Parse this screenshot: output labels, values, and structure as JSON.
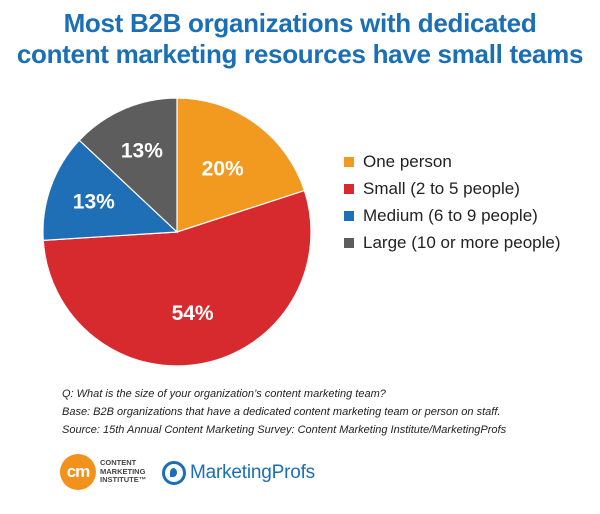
{
  "title": {
    "line1": "Most B2B organizations with dedicated",
    "line2": "content marketing resources have small teams"
  },
  "chart_data": {
    "type": "pie",
    "categories": [
      "One person",
      "Small (2 to 5 people)",
      "Medium (6 to 9 people)",
      "Large (10 or more people)"
    ],
    "values": [
      20,
      54,
      13,
      13
    ],
    "value_labels": [
      "20%",
      "54%",
      "13%",
      "13%"
    ],
    "colors": [
      "#f2991f",
      "#d62a2f",
      "#1f6fb7",
      "#5d5d5e"
    ],
    "start": "12 o'clock",
    "direction": "clockwise",
    "legend_position": "right"
  },
  "legend": [
    {
      "label": "One person",
      "color": "#f2991f"
    },
    {
      "label": "Small (2 to 5 people)",
      "color": "#d62a2f"
    },
    {
      "label": "Medium (6 to 9 people)",
      "color": "#1f6fb7"
    },
    {
      "label": "Large (10 or more people)",
      "color": "#5d5d5e"
    }
  ],
  "notes": {
    "question": "Q: What is the size of your organization’s content marketing team?",
    "base": "Base: B2B organizations that have a dedicated content marketing team or person on staff.",
    "source": "Source: 15th Annual Content Marketing Survey: Content Marketing Institute/MarketingProfs"
  },
  "logos": {
    "cmi_mark": "cm",
    "cmi_line1": "CONTENT",
    "cmi_line2": "MARKETING",
    "cmi_line3": "INSTITUTE™",
    "mp_name": "MarketingProfs"
  },
  "colors": {
    "title": "#1a6fb5",
    "cmi_orange": "#f2921d",
    "mp_blue": "#1a6fb5"
  }
}
